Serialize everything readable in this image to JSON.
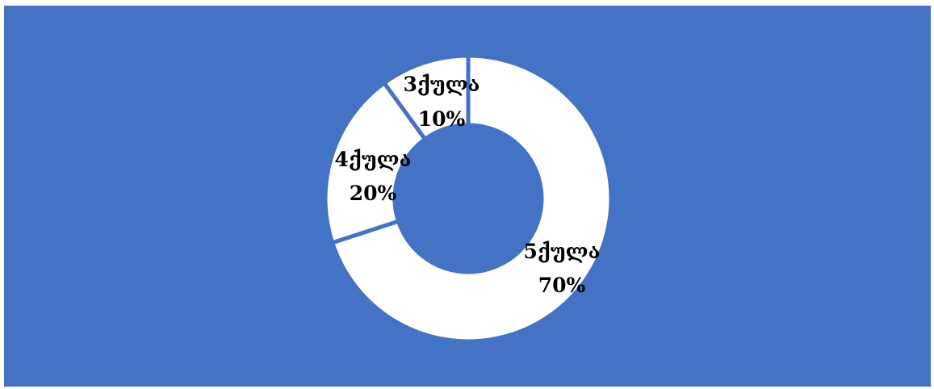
{
  "chart_data": {
    "type": "pie",
    "donut": true,
    "categories": [
      "5ქულა",
      "4ქულა",
      "3ქულა"
    ],
    "values": [
      70,
      20,
      10
    ],
    "data_labels": [
      {
        "category": "5ქულა",
        "percent": "70%"
      },
      {
        "category": "4ქულა",
        "percent": "20%"
      },
      {
        "category": "3ქულა",
        "percent": "10%"
      }
    ],
    "title": "",
    "legend": "none",
    "start_angle_deg": 0,
    "direction": "clockwise",
    "slice_color": "#FFFFFF",
    "background_color": "#4472C4"
  }
}
